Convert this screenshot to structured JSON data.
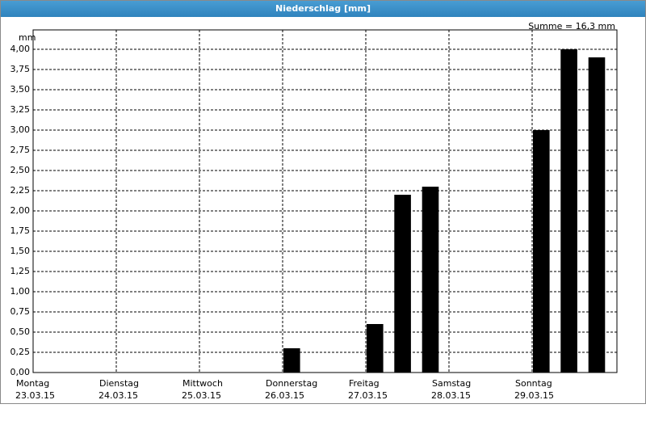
{
  "chart_data": {
    "type": "bar",
    "title": "Niederschlag [mm]",
    "y_label": "mm",
    "annotation": "Summe = 16,3 mm",
    "x": [
      3,
      4,
      4.333,
      4.667,
      6,
      6.333,
      6.667
    ],
    "values": [
      0.3,
      0.6,
      2.2,
      2.3,
      3.0,
      4.0,
      3.9
    ],
    "color": "#000000",
    "xlim": [
      0,
      7
    ],
    "xticks": [
      {
        "value": 0,
        "label": "Montag"
      },
      {
        "value": 1,
        "label": "Dienstag"
      },
      {
        "value": 2,
        "label": "Mittwoch"
      },
      {
        "value": 3,
        "label": "Donnerstag"
      },
      {
        "value": 4,
        "label": "Freitag"
      },
      {
        "value": 5,
        "label": "Samstag"
      },
      {
        "value": 6,
        "label": "Sonntag"
      }
    ],
    "xtick_dates": [
      "23.03.15",
      "24.03.15",
      "25.03.15",
      "26.03.15",
      "27.03.15",
      "28.03.15",
      "29.03.15"
    ],
    "ylim": [
      0,
      4.24
    ],
    "yticks": [
      {
        "value": 0,
        "label": "0,00"
      },
      {
        "value": 0.25,
        "label": "0,25"
      },
      {
        "value": 0.5,
        "label": "0,50"
      },
      {
        "value": 0.75,
        "label": "0,75"
      },
      {
        "value": 1,
        "label": "1,00"
      },
      {
        "value": 1.25,
        "label": "1,25"
      },
      {
        "value": 1.5,
        "label": "1,50"
      },
      {
        "value": 1.75,
        "label": "1,75"
      },
      {
        "value": 2,
        "label": "2,00"
      },
      {
        "value": 2.25,
        "label": "2,25"
      },
      {
        "value": 2.5,
        "label": "2,50"
      },
      {
        "value": 2.75,
        "label": "2,75"
      },
      {
        "value": 3,
        "label": "3,00"
      },
      {
        "value": 3.25,
        "label": "3,25"
      },
      {
        "value": 3.5,
        "label": "3,50"
      },
      {
        "value": 3.75,
        "label": "3,75"
      },
      {
        "value": 4,
        "label": "4,00"
      }
    ],
    "grid": true
  }
}
